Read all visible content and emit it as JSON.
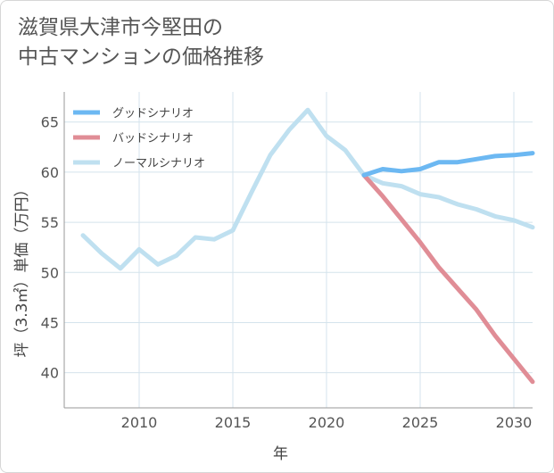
{
  "title": {
    "line1": "滋賀県大津市今堅田の",
    "line2": "中古マンションの価格推移"
  },
  "chart_data": {
    "type": "line",
    "xlabel": "年",
    "ylabel": "坪（3.3㎡）単価（万円）",
    "xlim": [
      2006,
      2031
    ],
    "ylim": [
      36.5,
      68
    ],
    "xticks": [
      2010,
      2015,
      2020,
      2025,
      2030
    ],
    "yticks": [
      40,
      45,
      50,
      55,
      60,
      65
    ],
    "grid": true,
    "legend_position": "top-left",
    "series": [
      {
        "name": "グッドシナリオ",
        "color": "#6cb8f2",
        "x": [
          2022,
          2023,
          2024,
          2025,
          2026,
          2027,
          2028,
          2029,
          2030,
          2031
        ],
        "y": [
          59.7,
          60.3,
          60.1,
          60.3,
          61.0,
          61.0,
          61.3,
          61.6,
          61.7,
          61.9
        ]
      },
      {
        "name": "バッドシナリオ",
        "color": "#e08d96",
        "x": [
          2022,
          2023,
          2024,
          2025,
          2026,
          2027,
          2028,
          2029,
          2030,
          2031
        ],
        "y": [
          59.7,
          57.6,
          55.3,
          53.0,
          50.5,
          48.4,
          46.3,
          43.7,
          41.4,
          39.1
        ]
      },
      {
        "name": "ノーマルシナリオ",
        "color": "#bfe0f0",
        "x": [
          2007,
          2008,
          2009,
          2010,
          2011,
          2012,
          2013,
          2014,
          2015,
          2016,
          2017,
          2018,
          2019,
          2020,
          2021,
          2022,
          2023,
          2024,
          2025,
          2026,
          2027,
          2028,
          2029,
          2030,
          2031
        ],
        "y": [
          53.7,
          51.9,
          50.4,
          52.3,
          50.8,
          51.7,
          53.5,
          53.3,
          54.2,
          58.0,
          61.7,
          64.2,
          66.2,
          63.6,
          62.2,
          59.7,
          58.9,
          58.6,
          57.8,
          57.5,
          56.8,
          56.3,
          55.6,
          55.2,
          54.5
        ]
      }
    ]
  }
}
